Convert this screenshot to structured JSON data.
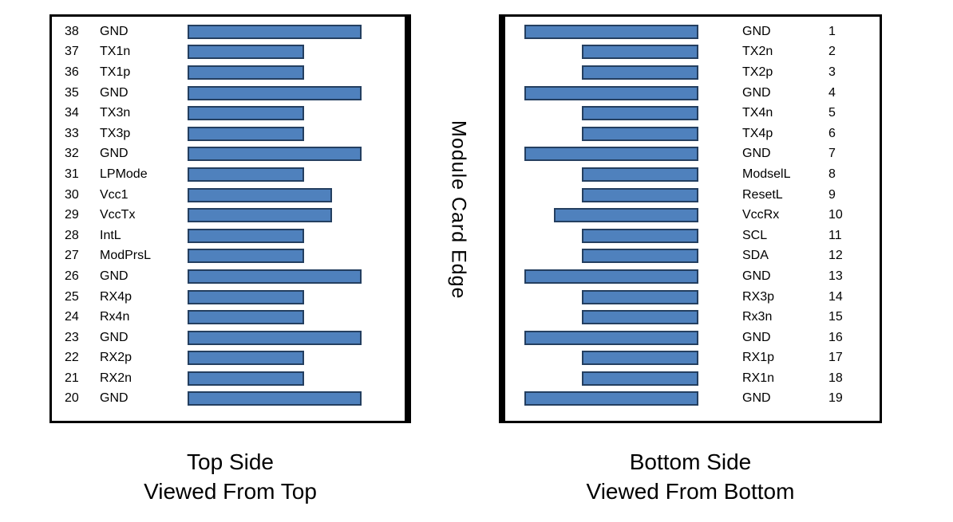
{
  "center_label": "Module Card Edge",
  "colors": {
    "bar_fill": "#4f81bd",
    "bar_border": "#243f60",
    "panel_border": "#000000"
  },
  "left_panel": {
    "caption_line1": "Top Side",
    "caption_line2": "Viewed From Top",
    "pins": [
      {
        "num": "38",
        "label": "GND",
        "size": "long"
      },
      {
        "num": "37",
        "label": "TX1n",
        "size": "short"
      },
      {
        "num": "36",
        "label": "TX1p",
        "size": "short"
      },
      {
        "num": "35",
        "label": "GND",
        "size": "long"
      },
      {
        "num": "34",
        "label": "TX3n",
        "size": "short"
      },
      {
        "num": "33",
        "label": "TX3p",
        "size": "short"
      },
      {
        "num": "32",
        "label": "GND",
        "size": "long"
      },
      {
        "num": "31",
        "label": "LPMode",
        "size": "short"
      },
      {
        "num": "30",
        "label": "Vcc1",
        "size": "medium"
      },
      {
        "num": "29",
        "label": "VccTx",
        "size": "medium"
      },
      {
        "num": "28",
        "label": "IntL",
        "size": "short"
      },
      {
        "num": "27",
        "label": "ModPrsL",
        "size": "short"
      },
      {
        "num": "26",
        "label": "GND",
        "size": "long"
      },
      {
        "num": "25",
        "label": "RX4p",
        "size": "short"
      },
      {
        "num": "24",
        "label": "Rx4n",
        "size": "short"
      },
      {
        "num": "23",
        "label": "GND",
        "size": "long"
      },
      {
        "num": "22",
        "label": "RX2p",
        "size": "short"
      },
      {
        "num": "21",
        "label": "RX2n",
        "size": "short"
      },
      {
        "num": "20",
        "label": "GND",
        "size": "long"
      }
    ]
  },
  "right_panel": {
    "caption_line1": "Bottom Side",
    "caption_line2": "Viewed From Bottom",
    "pins": [
      {
        "num": "1",
        "label": "GND",
        "size": "long"
      },
      {
        "num": "2",
        "label": "TX2n",
        "size": "short"
      },
      {
        "num": "3",
        "label": "TX2p",
        "size": "short"
      },
      {
        "num": "4",
        "label": "GND",
        "size": "long"
      },
      {
        "num": "5",
        "label": "TX4n",
        "size": "short"
      },
      {
        "num": "6",
        "label": "TX4p",
        "size": "short"
      },
      {
        "num": "7",
        "label": "GND",
        "size": "long"
      },
      {
        "num": "8",
        "label": "ModselL",
        "size": "short"
      },
      {
        "num": "9",
        "label": "ResetL",
        "size": "short"
      },
      {
        "num": "10",
        "label": "VccRx",
        "size": "medium"
      },
      {
        "num": "11",
        "label": "SCL",
        "size": "short"
      },
      {
        "num": "12",
        "label": "SDA",
        "size": "short"
      },
      {
        "num": "13",
        "label": "GND",
        "size": "long"
      },
      {
        "num": "14",
        "label": "RX3p",
        "size": "short"
      },
      {
        "num": "15",
        "label": "Rx3n",
        "size": "short"
      },
      {
        "num": "16",
        "label": "GND",
        "size": "long"
      },
      {
        "num": "17",
        "label": "RX1p",
        "size": "short"
      },
      {
        "num": "18",
        "label": "RX1n",
        "size": "short"
      },
      {
        "num": "19",
        "label": "GND",
        "size": "long"
      }
    ]
  }
}
